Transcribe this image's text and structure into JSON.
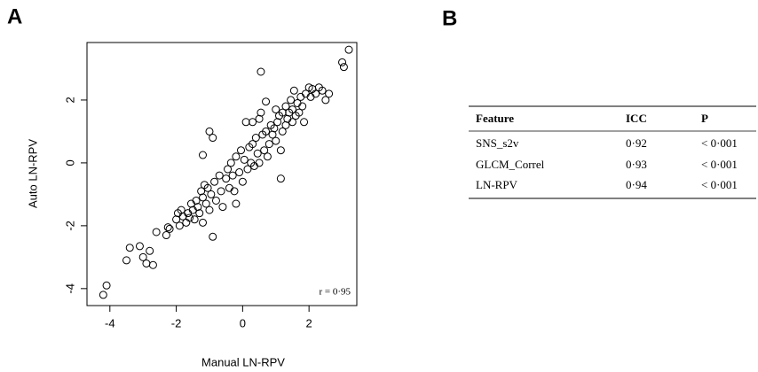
{
  "panel_labels": [
    "A",
    "B"
  ],
  "chart_data": {
    "type": "scatter",
    "x_label": "Manual LN-RPV",
    "y_label": "Auto LN-RPV",
    "annotation": "r = 0·95",
    "color": "#000000",
    "xlim": [
      -4.69,
      3.44
    ],
    "ylim": [
      -4.54,
      3.83
    ],
    "xticks": [
      -4,
      -2,
      0,
      2
    ],
    "yticks": [
      -4,
      -2,
      0,
      2
    ],
    "x": [
      -4.2,
      -4.1,
      -3.5,
      -3.4,
      -3.1,
      -3.0,
      -2.9,
      -2.8,
      -2.7,
      -2.6,
      -2.3,
      -2.25,
      -2.2,
      -2.0,
      -1.95,
      -1.9,
      -1.85,
      -1.8,
      -1.7,
      -1.65,
      -1.6,
      -1.55,
      -1.5,
      -1.45,
      -1.4,
      -1.35,
      -1.3,
      -1.25,
      -1.2,
      -1.2,
      -1.15,
      -1.1,
      -1.05,
      -1.0,
      -0.95,
      -0.9,
      -0.9,
      -1.0,
      -1.2,
      -0.85,
      -0.8,
      -0.7,
      -0.65,
      -0.6,
      -0.5,
      -0.45,
      -0.4,
      -0.35,
      -0.3,
      -0.25,
      -0.2,
      -0.2,
      -0.1,
      -0.05,
      0.0,
      0.05,
      0.1,
      0.15,
      0.2,
      0.25,
      0.3,
      0.3,
      0.35,
      0.4,
      0.45,
      0.5,
      0.5,
      0.55,
      0.55,
      0.6,
      0.65,
      0.7,
      0.7,
      0.75,
      0.8,
      0.85,
      0.9,
      0.95,
      1.0,
      1.0,
      1.05,
      1.1,
      1.15,
      1.15,
      1.2,
      1.2,
      1.3,
      1.3,
      1.35,
      1.4,
      1.45,
      1.5,
      1.5,
      1.55,
      1.6,
      1.65,
      1.7,
      1.75,
      1.8,
      1.85,
      1.9,
      2.0,
      2.05,
      2.1,
      2.2,
      2.3,
      2.4,
      2.5,
      2.6,
      3.0,
      3.05,
      3.2
    ],
    "y": [
      -4.2,
      -3.9,
      -3.1,
      -2.7,
      -2.65,
      -3.0,
      -3.2,
      -2.8,
      -3.25,
      -2.2,
      -2.3,
      -2.05,
      -2.1,
      -1.8,
      -1.6,
      -2.0,
      -1.5,
      -1.7,
      -1.9,
      -1.6,
      -1.75,
      -1.3,
      -1.5,
      -1.8,
      -1.2,
      -1.4,
      -1.6,
      -0.9,
      -1.1,
      -1.9,
      -0.7,
      -1.3,
      -0.8,
      -1.5,
      -1.0,
      -2.35,
      0.8,
      1.0,
      0.25,
      -0.6,
      -1.2,
      -0.4,
      -0.9,
      -1.4,
      -0.5,
      -0.2,
      -0.8,
      0.0,
      -0.4,
      -0.9,
      0.2,
      -1.3,
      -0.3,
      0.4,
      -0.6,
      0.1,
      1.3,
      -0.2,
      0.5,
      0.0,
      1.3,
      0.6,
      -0.1,
      0.8,
      0.3,
      1.4,
      0.0,
      1.6,
      2.9,
      0.9,
      0.4,
      1.0,
      1.95,
      0.2,
      0.6,
      1.2,
      0.9,
      1.1,
      0.7,
      1.7,
      1.3,
      1.5,
      0.4,
      -0.5,
      1.0,
      1.6,
      1.8,
      1.2,
      1.4,
      1.6,
      2.0,
      1.3,
      1.7,
      2.3,
      1.5,
      1.9,
      1.6,
      2.1,
      1.8,
      1.3,
      2.2,
      2.4,
      2.1,
      2.35,
      2.2,
      2.4,
      2.3,
      2.0,
      2.2,
      3.2,
      3.05,
      3.6
    ]
  },
  "table": {
    "header": [
      "Feature",
      "ICC",
      "P"
    ],
    "rows": [
      [
        "SNS_s2v",
        "0·92",
        "< 0·001"
      ],
      [
        "GLCM_Correl",
        "0·93",
        "< 0·001"
      ],
      [
        "LN-RPV",
        "0·94",
        "< 0·001"
      ]
    ]
  }
}
